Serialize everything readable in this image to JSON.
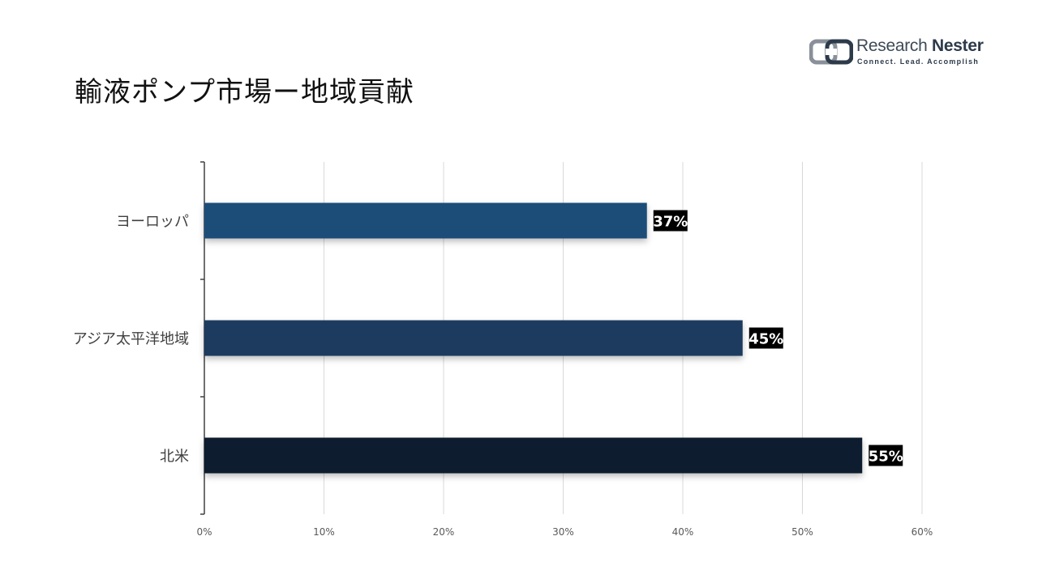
{
  "title": "輸液ポンプ市場ー地域貢献",
  "logo": {
    "name_light": "Research",
    "name_bold": "Nester",
    "tagline": "Connect. Lead. Accomplish"
  },
  "chart_data": {
    "type": "bar",
    "orientation": "horizontal",
    "categories": [
      "ヨーロッパ",
      "アジア太平洋地域",
      "北米"
    ],
    "values": [
      37,
      45,
      55
    ],
    "value_labels": [
      "37%",
      "45%",
      "55%"
    ],
    "colors": [
      "#1f4e79",
      "#1a3a5e",
      "#0e1e2e"
    ],
    "xlim": [
      0,
      60
    ],
    "xticks": [
      0,
      10,
      20,
      30,
      40,
      50,
      60
    ],
    "xtick_labels": [
      "0%",
      "10%",
      "20%",
      "30%",
      "40%",
      "50%",
      "60%"
    ],
    "grid": true,
    "legend": "none"
  }
}
